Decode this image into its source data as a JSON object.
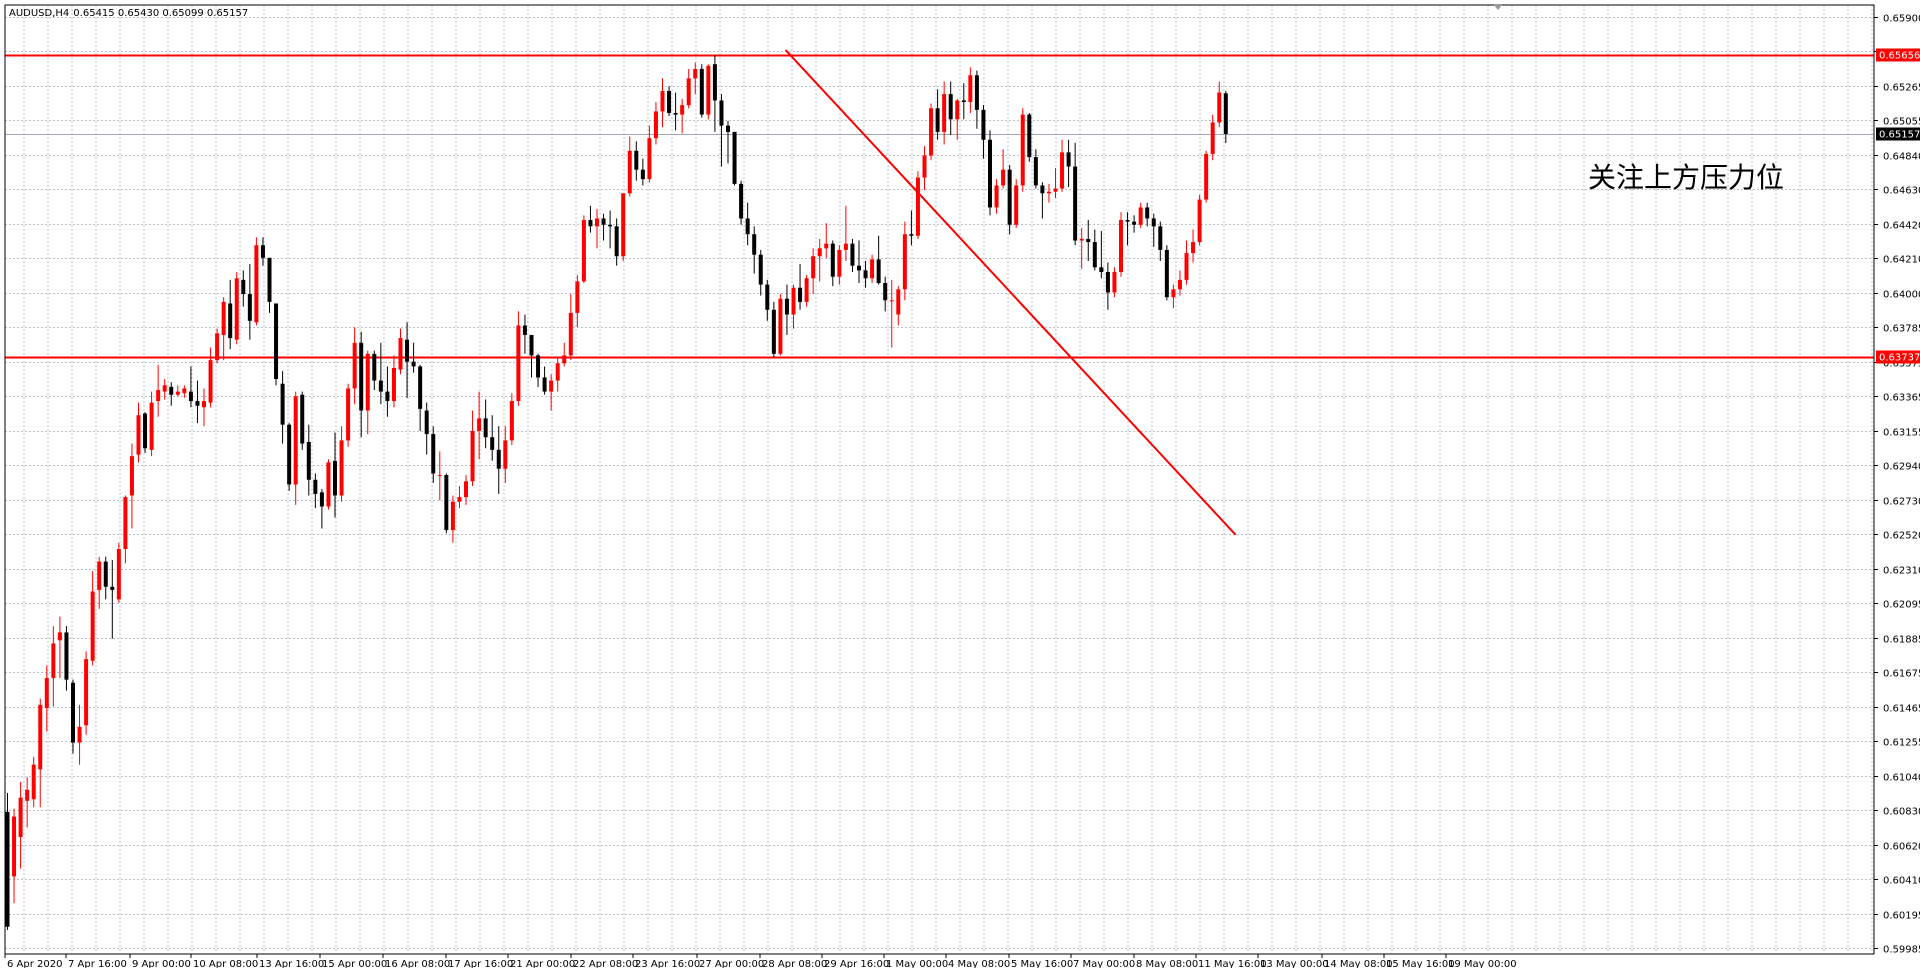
{
  "chart_data": {
    "type": "candlestick",
    "symbol": "AUDUSD,H4",
    "ohlc_readout": "0.65415 0.65430 0.65099 0.65157",
    "ylim": [
      0.59985,
      0.66005
    ],
    "y_ticks": [
      "0.65900",
      "0.65475",
      "0.65265",
      "0.65055",
      "0.64840",
      "0.64630",
      "0.64420",
      "0.64210",
      "0.64000",
      "0.63785",
      "0.63575",
      "0.63365",
      "0.63155",
      "0.62940",
      "0.62730",
      "0.62520",
      "0.62310",
      "0.62095",
      "0.61885",
      "0.61675",
      "0.61465",
      "0.61255",
      "0.61040",
      "0.60830",
      "0.60620",
      "0.60410",
      "0.60195",
      "0.59985"
    ],
    "x_labels": [
      "6 Apr 2020",
      "7 Apr 16:00",
      "9 Apr 00:00",
      "10 Apr 08:00",
      "13 Apr 16:00",
      "15 Apr 00:00",
      "16 Apr 08:00",
      "17 Apr 16:00",
      "21 Apr 00:00",
      "22 Apr 08:00",
      "23 Apr 16:00",
      "27 Apr 00:00",
      "28 Apr 08:00",
      "29 Apr 16:00",
      "1 May 00:00",
      "4 May 08:00",
      "5 May 16:00",
      "7 May 00:00",
      "8 May 08:00",
      "11 May 16:00",
      "13 May 00:00",
      "14 May 08:00",
      "15 May 16:00",
      "19 May 00:00"
    ],
    "horizontal_lines": [
      {
        "price": 0.65656,
        "label": "0.65656",
        "color": "#ff0000"
      },
      {
        "price": 0.63737,
        "label": "0.63737",
        "color": "#ff0000"
      }
    ],
    "current_price": {
      "price": 0.65157,
      "label": "0.65157",
      "color": "#a0a8b8"
    },
    "trendline": {
      "from": [
        118.8,
        0.6569
      ],
      "to": [
        187.5,
        0.6261
      ],
      "color": "#ff0000"
    },
    "candles": [
      [
        0.6085,
        0.6097,
        0.601,
        0.6012
      ],
      [
        0.6044,
        0.6087,
        0.6027,
        0.6082
      ],
      [
        0.6069,
        0.6104,
        0.6049,
        0.6094
      ],
      [
        0.6092,
        0.6107,
        0.6075,
        0.6099
      ],
      [
        0.6093,
        0.612,
        0.6088,
        0.6115
      ],
      [
        0.6112,
        0.6157,
        0.6088,
        0.6153
      ],
      [
        0.6151,
        0.6178,
        0.6136,
        0.617
      ],
      [
        0.617,
        0.6203,
        0.6152,
        0.6192
      ],
      [
        0.6194,
        0.6209,
        0.617,
        0.6199
      ],
      [
        0.6199,
        0.6203,
        0.6162,
        0.6169
      ],
      [
        0.6167,
        0.6169,
        0.6122,
        0.6129
      ],
      [
        0.6129,
        0.6153,
        0.6115,
        0.6139
      ],
      [
        0.614,
        0.6187,
        0.6134,
        0.6182
      ],
      [
        0.6181,
        0.6238,
        0.6178,
        0.6225
      ],
      [
        0.6226,
        0.6247,
        0.6214,
        0.6244
      ],
      [
        0.6244,
        0.6247,
        0.622,
        0.6228
      ],
      [
        0.6228,
        0.6245,
        0.6195,
        0.6226
      ],
      [
        0.622,
        0.6256,
        0.6218,
        0.6252
      ],
      [
        0.6252,
        0.6286,
        0.6243,
        0.6285
      ],
      [
        0.6286,
        0.6319,
        0.6265,
        0.6311
      ],
      [
        0.6312,
        0.6345,
        0.6307,
        0.6337
      ],
      [
        0.6338,
        0.6339,
        0.6313,
        0.6316
      ],
      [
        0.6315,
        0.6352,
        0.6311,
        0.6345
      ],
      [
        0.6346,
        0.6369,
        0.6336,
        0.6353
      ],
      [
        0.6352,
        0.636,
        0.6347,
        0.6356
      ],
      [
        0.6355,
        0.6358,
        0.6343,
        0.635
      ],
      [
        0.635,
        0.6356,
        0.6349,
        0.6352
      ],
      [
        0.6351,
        0.6356,
        0.6348,
        0.6354
      ],
      [
        0.6352,
        0.6368,
        0.6342,
        0.6346
      ],
      [
        0.6346,
        0.6359,
        0.6332,
        0.6343
      ],
      [
        0.6342,
        0.6354,
        0.633,
        0.6346
      ],
      [
        0.6345,
        0.638,
        0.6342,
        0.6372
      ],
      [
        0.6372,
        0.6392,
        0.637,
        0.6389
      ],
      [
        0.6388,
        0.6412,
        0.6372,
        0.6409
      ],
      [
        0.6408,
        0.6423,
        0.6379,
        0.6386
      ],
      [
        0.6385,
        0.6428,
        0.6382,
        0.6424
      ],
      [
        0.6423,
        0.6429,
        0.6406,
        0.6414
      ],
      [
        0.6414,
        0.6433,
        0.6385,
        0.6397
      ],
      [
        0.6396,
        0.645,
        0.6394,
        0.6445
      ],
      [
        0.6445,
        0.645,
        0.6432,
        0.6437
      ],
      [
        0.6437,
        0.6437,
        0.6402,
        0.6409
      ],
      [
        0.6408,
        0.6408,
        0.6356,
        0.636
      ],
      [
        0.6357,
        0.6365,
        0.6319,
        0.6331
      ],
      [
        0.6331,
        0.6332,
        0.6289,
        0.6293
      ],
      [
        0.6293,
        0.6352,
        0.628,
        0.6349
      ],
      [
        0.635,
        0.6352,
        0.6315,
        0.6319
      ],
      [
        0.632,
        0.6331,
        0.6286,
        0.6296
      ],
      [
        0.6296,
        0.63,
        0.6278,
        0.6287
      ],
      [
        0.6288,
        0.629,
        0.6265,
        0.6279
      ],
      [
        0.6279,
        0.6309,
        0.6277,
        0.6307
      ],
      [
        0.6308,
        0.6326,
        0.6272,
        0.6286
      ],
      [
        0.6286,
        0.633,
        0.6282,
        0.6321
      ],
      [
        0.6321,
        0.6357,
        0.6317,
        0.6354
      ],
      [
        0.6354,
        0.6393,
        0.6344,
        0.6383
      ],
      [
        0.6383,
        0.639,
        0.6323,
        0.634
      ],
      [
        0.634,
        0.6378,
        0.6325,
        0.6376
      ],
      [
        0.6376,
        0.6378,
        0.6353,
        0.6359
      ],
      [
        0.6359,
        0.6383,
        0.6344,
        0.6352
      ],
      [
        0.6352,
        0.6368,
        0.6336,
        0.6346
      ],
      [
        0.6346,
        0.6375,
        0.6342,
        0.6367
      ],
      [
        0.6366,
        0.6392,
        0.6363,
        0.6386
      ],
      [
        0.6385,
        0.6396,
        0.6348,
        0.6371
      ],
      [
        0.6371,
        0.6383,
        0.6364,
        0.6368
      ],
      [
        0.6368,
        0.6369,
        0.6327,
        0.6341
      ],
      [
        0.634,
        0.6345,
        0.6312,
        0.6325
      ],
      [
        0.6325,
        0.633,
        0.6294,
        0.63
      ],
      [
        0.6299,
        0.6314,
        0.6283,
        0.6299
      ],
      [
        0.6299,
        0.63,
        0.6262,
        0.6264
      ],
      [
        0.6264,
        0.6286,
        0.6256,
        0.6282
      ],
      [
        0.6282,
        0.6292,
        0.6278,
        0.6285
      ],
      [
        0.6285,
        0.6299,
        0.628,
        0.6295
      ],
      [
        0.6295,
        0.634,
        0.6292,
        0.6327
      ],
      [
        0.6327,
        0.6352,
        0.6309,
        0.6335
      ],
      [
        0.6335,
        0.6347,
        0.6316,
        0.6323
      ],
      [
        0.6323,
        0.6337,
        0.6308,
        0.6315
      ],
      [
        0.6315,
        0.633,
        0.6287,
        0.6303
      ],
      [
        0.6303,
        0.633,
        0.6294,
        0.6321
      ],
      [
        0.6321,
        0.6351,
        0.6318,
        0.6346
      ],
      [
        0.6346,
        0.6403,
        0.6343,
        0.6394
      ],
      [
        0.6394,
        0.6401,
        0.6376,
        0.6388
      ],
      [
        0.6388,
        0.6388,
        0.6361,
        0.6375
      ],
      [
        0.6375,
        0.6376,
        0.6355,
        0.6361
      ],
      [
        0.6361,
        0.6368,
        0.635,
        0.6352
      ],
      [
        0.6352,
        0.6363,
        0.634,
        0.6359
      ],
      [
        0.6359,
        0.6374,
        0.6352,
        0.637
      ],
      [
        0.637,
        0.6383,
        0.6368,
        0.6375
      ],
      [
        0.6375,
        0.6414,
        0.6372,
        0.6402
      ],
      [
        0.6402,
        0.6426,
        0.6393,
        0.6422
      ],
      [
        0.6422,
        0.6464,
        0.6421,
        0.6461
      ],
      [
        0.6461,
        0.647,
        0.6453,
        0.6457
      ],
      [
        0.6457,
        0.6468,
        0.6443,
        0.6462
      ],
      [
        0.6462,
        0.6465,
        0.6448,
        0.6458
      ],
      [
        0.6458,
        0.6467,
        0.6443,
        0.6457
      ],
      [
        0.6457,
        0.6462,
        0.6432,
        0.6438
      ],
      [
        0.6438,
        0.6478,
        0.6435,
        0.6478
      ],
      [
        0.6478,
        0.6514,
        0.6476,
        0.6505
      ],
      [
        0.6505,
        0.6511,
        0.6486,
        0.6493
      ],
      [
        0.6493,
        0.65,
        0.6483,
        0.6487
      ],
      [
        0.6487,
        0.6521,
        0.6485,
        0.6513
      ],
      [
        0.6513,
        0.6536,
        0.6509,
        0.653
      ],
      [
        0.653,
        0.6551,
        0.652,
        0.6543
      ],
      [
        0.6543,
        0.6546,
        0.6527,
        0.6529
      ],
      [
        0.6529,
        0.6542,
        0.6518,
        0.6528
      ],
      [
        0.6528,
        0.6538,
        0.6516,
        0.6534
      ],
      [
        0.6534,
        0.6557,
        0.6532,
        0.6551
      ],
      [
        0.6551,
        0.6561,
        0.6541,
        0.6557
      ],
      [
        0.6557,
        0.656,
        0.6526,
        0.6528
      ],
      [
        0.6528,
        0.656,
        0.6525,
        0.6559
      ],
      [
        0.656,
        0.6566,
        0.6517,
        0.6537
      ],
      [
        0.6537,
        0.6541,
        0.6495,
        0.6521
      ],
      [
        0.6521,
        0.6524,
        0.6497,
        0.6517
      ],
      [
        0.6517,
        0.6517,
        0.6483,
        0.6484
      ],
      [
        0.6484,
        0.6486,
        0.6458,
        0.6462
      ],
      [
        0.6462,
        0.6472,
        0.6445,
        0.6452
      ],
      [
        0.6452,
        0.6457,
        0.6427,
        0.6439
      ],
      [
        0.6439,
        0.6442,
        0.6413,
        0.642
      ],
      [
        0.642,
        0.6423,
        0.6397,
        0.6404
      ],
      [
        0.6404,
        0.6409,
        0.6374,
        0.6376
      ],
      [
        0.6376,
        0.6414,
        0.6375,
        0.6411
      ],
      [
        0.6411,
        0.642,
        0.6388,
        0.6401
      ],
      [
        0.6401,
        0.642,
        0.6392,
        0.6418
      ],
      [
        0.6418,
        0.6433,
        0.6404,
        0.6409
      ],
      [
        0.6409,
        0.6426,
        0.6406,
        0.6424
      ],
      [
        0.6424,
        0.6443,
        0.6414,
        0.6438
      ],
      [
        0.6438,
        0.6449,
        0.6422,
        0.6443
      ],
      [
        0.6443,
        0.6459,
        0.6437,
        0.6446
      ],
      [
        0.6446,
        0.6448,
        0.6419,
        0.6425
      ],
      [
        0.6425,
        0.6445,
        0.642,
        0.6442
      ],
      [
        0.6442,
        0.647,
        0.6435,
        0.6446
      ],
      [
        0.6446,
        0.6449,
        0.6428,
        0.6432
      ],
      [
        0.6432,
        0.6448,
        0.6421,
        0.6429
      ],
      [
        0.6429,
        0.6435,
        0.6418,
        0.6424
      ],
      [
        0.6424,
        0.6439,
        0.6421,
        0.6436
      ],
      [
        0.6436,
        0.6451,
        0.642,
        0.6421
      ],
      [
        0.6421,
        0.6425,
        0.6403,
        0.641
      ],
      [
        0.641,
        0.6423,
        0.638,
        0.641
      ],
      [
        0.6401,
        0.6419,
        0.6394,
        0.6417
      ],
      [
        0.6417,
        0.646,
        0.641,
        0.6452
      ],
      [
        0.6452,
        0.6467,
        0.6445,
        0.6451
      ],
      [
        0.6451,
        0.6492,
        0.6449,
        0.6488
      ],
      [
        0.6488,
        0.6508,
        0.648,
        0.6502
      ],
      [
        0.6502,
        0.6535,
        0.6499,
        0.6532
      ],
      [
        0.6532,
        0.6544,
        0.6512,
        0.6517
      ],
      [
        0.6517,
        0.6549,
        0.6509,
        0.6541
      ],
      [
        0.6541,
        0.6549,
        0.6515,
        0.6525
      ],
      [
        0.6525,
        0.6538,
        0.6512,
        0.6537
      ],
      [
        0.6537,
        0.6548,
        0.6525,
        0.6536
      ],
      [
        0.6536,
        0.6558,
        0.6529,
        0.6553
      ],
      [
        0.6553,
        0.6556,
        0.6519,
        0.6531
      ],
      [
        0.6531,
        0.6534,
        0.65,
        0.6512
      ],
      [
        0.6512,
        0.6518,
        0.6464,
        0.6469
      ],
      [
        0.6469,
        0.6487,
        0.6465,
        0.6483
      ],
      [
        0.6483,
        0.6506,
        0.6481,
        0.6493
      ],
      [
        0.6493,
        0.6496,
        0.6452,
        0.6458
      ],
      [
        0.6458,
        0.6487,
        0.6456,
        0.6483
      ],
      [
        0.6483,
        0.6532,
        0.6479,
        0.6528
      ],
      [
        0.6528,
        0.6529,
        0.6498,
        0.6501
      ],
      [
        0.6501,
        0.6506,
        0.6481,
        0.6483
      ],
      [
        0.6483,
        0.6485,
        0.6462,
        0.6478
      ],
      [
        0.6478,
        0.6484,
        0.6472,
        0.6479
      ],
      [
        0.6479,
        0.6494,
        0.6475,
        0.6481
      ],
      [
        0.6481,
        0.6512,
        0.6479,
        0.6504
      ],
      [
        0.6504,
        0.6512,
        0.6482,
        0.6495
      ],
      [
        0.6495,
        0.651,
        0.6445,
        0.6448
      ],
      [
        0.6448,
        0.6456,
        0.643,
        0.6449
      ],
      [
        0.6449,
        0.6461,
        0.6435,
        0.6447
      ],
      [
        0.6447,
        0.6455,
        0.6429,
        0.6431
      ],
      [
        0.6431,
        0.6454,
        0.6424,
        0.6428
      ],
      [
        0.6428,
        0.6434,
        0.6404,
        0.6415
      ],
      [
        0.6415,
        0.6431,
        0.6412,
        0.6428
      ],
      [
        0.6428,
        0.6466,
        0.6425,
        0.6461
      ],
      [
        0.6461,
        0.6466,
        0.6445,
        0.646
      ],
      [
        0.646,
        0.6464,
        0.6453,
        0.6458
      ],
      [
        0.6458,
        0.6472,
        0.6456,
        0.6469
      ],
      [
        0.6469,
        0.6472,
        0.6457,
        0.6462
      ],
      [
        0.6462,
        0.6465,
        0.6444,
        0.6457
      ],
      [
        0.6457,
        0.646,
        0.6435,
        0.6442
      ],
      [
        0.6442,
        0.6445,
        0.641,
        0.6412
      ],
      [
        0.6412,
        0.642,
        0.6405,
        0.6417
      ],
      [
        0.6417,
        0.6429,
        0.6413,
        0.6423
      ],
      [
        0.6423,
        0.6448,
        0.642,
        0.644
      ],
      [
        0.644,
        0.6455,
        0.6434,
        0.6447
      ],
      [
        0.6447,
        0.6477,
        0.6445,
        0.6474
      ],
      [
        0.6474,
        0.6505,
        0.6472,
        0.6503
      ],
      [
        0.6503,
        0.6528,
        0.6499,
        0.6523
      ],
      [
        0.6523,
        0.6549,
        0.652,
        0.6542
      ],
      [
        0.65415,
        0.6543,
        0.65099,
        0.65157
      ]
    ]
  },
  "annotation": {
    "text": "关注上方压力位"
  },
  "colors": {
    "bull": "#ff0000",
    "bear": "#000000",
    "grid": "#b8c0cc",
    "background": "#ffffff",
    "frame": "#000000"
  }
}
